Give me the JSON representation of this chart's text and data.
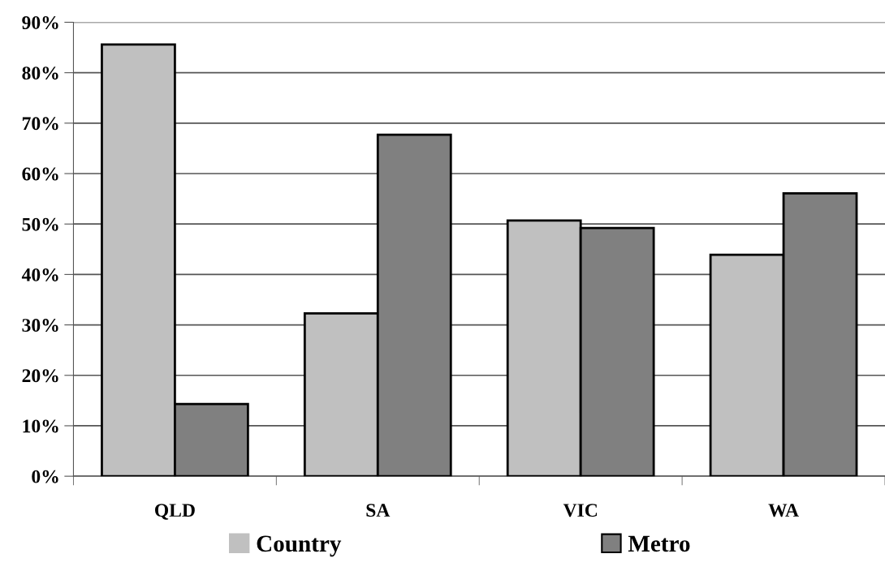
{
  "chart_data": {
    "type": "bar",
    "categories": [
      "QLD",
      "SA",
      "VIC",
      "WA"
    ],
    "series": [
      {
        "name": "Country",
        "color": "#c0c0c0",
        "values": [
          85.6,
          32.3,
          50.7,
          43.9
        ]
      },
      {
        "name": "Metro",
        "color": "#808080",
        "values": [
          14.3,
          67.7,
          49.2,
          56.1
        ]
      }
    ],
    "ylim": [
      0,
      90
    ],
    "yticks": [
      {
        "value": 0,
        "label": "0%"
      },
      {
        "value": 10,
        "label": "10%"
      },
      {
        "value": 20,
        "label": "20%"
      },
      {
        "value": 30,
        "label": "30%"
      },
      {
        "value": 40,
        "label": "40%"
      },
      {
        "value": 50,
        "label": "50%"
      },
      {
        "value": 60,
        "label": "60%"
      },
      {
        "value": 70,
        "label": "70%"
      },
      {
        "value": 80,
        "label": "80%"
      },
      {
        "value": 90,
        "label": "90%"
      }
    ],
    "grid": "y",
    "legend": "bottom"
  }
}
